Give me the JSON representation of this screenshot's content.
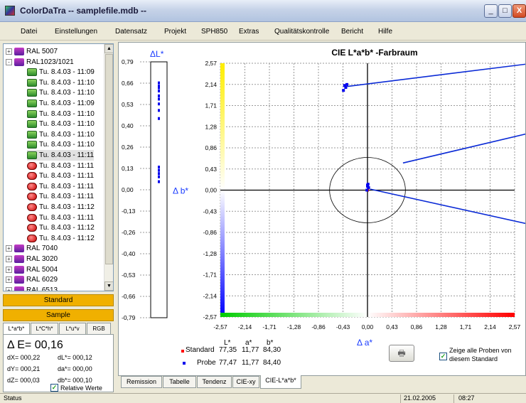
{
  "window": {
    "title": "ColorDaTra -- samplefile.mdb --",
    "minimize": "_",
    "maximize": "□",
    "close": "X"
  },
  "menu": [
    "Datei",
    "Einstellungen",
    "Datensatz",
    "Projekt",
    "SPH850",
    "Extras",
    "Qualitätskontrolle",
    "Bericht",
    "Hilfe"
  ],
  "tree": {
    "items": [
      {
        "label": "RAL 5007",
        "type": "folder",
        "exp": "+"
      },
      {
        "label": "RAL1023/1021",
        "type": "folder",
        "exp": "-"
      },
      {
        "label": "Tu. 8.4.03 - 11:09",
        "type": "green"
      },
      {
        "label": "Tu. 8.4.03 - 11:10",
        "type": "green"
      },
      {
        "label": "Tu. 8.4.03 - 11:10",
        "type": "green"
      },
      {
        "label": "Tu. 8.4.03 - 11:09",
        "type": "green"
      },
      {
        "label": "Tu. 8.4.03 - 11:10",
        "type": "green"
      },
      {
        "label": "Tu. 8.4.03 - 11:10",
        "type": "green"
      },
      {
        "label": "Tu. 8.4.03 - 11:10",
        "type": "green"
      },
      {
        "label": "Tu. 8.4.03 - 11:10",
        "type": "green"
      },
      {
        "label": "Tu. 8.4.03 - 11:11",
        "type": "green",
        "selected": true
      },
      {
        "label": "Tu. 8.4.03 - 11:11",
        "type": "red"
      },
      {
        "label": "Tu. 8.4.03 - 11:11",
        "type": "red"
      },
      {
        "label": "Tu. 8.4.03 - 11:11",
        "type": "red"
      },
      {
        "label": "Tu. 8.4.03 - 11:11",
        "type": "red"
      },
      {
        "label": "Tu. 8.4.03 - 11:12",
        "type": "red"
      },
      {
        "label": "Tu. 8.4.03 - 11:11",
        "type": "red"
      },
      {
        "label": "Tu. 8.4.03 - 11:12",
        "type": "red"
      },
      {
        "label": "Tu. 8.4.03 - 11:12",
        "type": "red"
      },
      {
        "label": "RAL 7040",
        "type": "folder",
        "exp": "+"
      },
      {
        "label": "RAL 3020",
        "type": "folder",
        "exp": "+"
      },
      {
        "label": "RAL 5004",
        "type": "folder",
        "exp": "+"
      },
      {
        "label": "RAL 6029",
        "type": "folder",
        "exp": "+"
      },
      {
        "label": "RAL 6513",
        "type": "folder",
        "exp": "+"
      }
    ]
  },
  "buttons": {
    "standard": "Standard",
    "sample": "Sample"
  },
  "left_tabs": [
    "L*a*b*",
    "L*C*h*",
    "L*u*v",
    "RGB"
  ],
  "delta": {
    "deltaE_label": "Δ E=",
    "deltaE_value": "00,16",
    "dX": "dX= 000,22",
    "dL": "dL*= 000,12",
    "dY": "dY= 000,21",
    "da": "da*= 000,00",
    "dZ": "dZ= 000,03",
    "db": "db*= 000,10",
    "relative_label": "Relative Werte",
    "relative_checked": "✓"
  },
  "chart_data": [
    {
      "type": "scatter",
      "title": "ΔL*",
      "ylabel": "ΔL*",
      "ylim": [
        -0.79,
        0.79
      ],
      "yticks": [
        "0,79",
        "0,66",
        "0,53",
        "0,40",
        "0,26",
        "0,13",
        "0,00",
        "-0,13",
        "-0,26",
        "-0,40",
        "-0,53",
        "-0,66",
        "-0,79"
      ],
      "series": [
        {
          "name": "Probe",
          "color": "#0000ee",
          "x": [
            0,
            0,
            0,
            0,
            0,
            0,
            0,
            0,
            0,
            0,
            0,
            0,
            0,
            0
          ],
          "y": [
            0.66,
            0.64,
            0.63,
            0.61,
            0.58,
            0.56,
            0.53,
            0.49,
            0.44,
            0.14,
            0.12,
            0.1,
            0.08,
            0.05
          ]
        }
      ]
    },
    {
      "type": "scatter",
      "title": "CIE L*a*b* -Farbraum",
      "xlabel": "Δ a*",
      "ylabel": "Δ b*",
      "xlim": [
        -2.57,
        2.57
      ],
      "ylim": [
        -2.57,
        2.57
      ],
      "xticks": [
        "-2,57",
        "-2,14",
        "-1,71",
        "-1,28",
        "-0,86",
        "-0,43",
        "0,00",
        "0,43",
        "0,86",
        "1,28",
        "1,71",
        "2,14",
        "2,57"
      ],
      "yticks": [
        "2,57",
        "2,14",
        "1,71",
        "1,28",
        "0,86",
        "0,43",
        "0,00",
        "-0,43",
        "-0,86",
        "-1,28",
        "-1,71",
        "-2,14",
        "-2,57"
      ],
      "grid": true,
      "tolerance_radius": 0.86,
      "series": [
        {
          "name": "Standard",
          "color": "#ff0000",
          "x": [
            0.0
          ],
          "y": [
            0.0
          ]
        },
        {
          "name": "Probe",
          "color": "#0000ee",
          "x": [
            -0.4,
            -0.38,
            -0.36,
            -0.42,
            0.0,
            0.02,
            -0.01,
            0.01,
            0.0
          ],
          "y": [
            2.12,
            2.08,
            2.14,
            2.02,
            0.1,
            0.05,
            0.0,
            0.12,
            0.08
          ]
        }
      ]
    }
  ],
  "legend_table": {
    "headers": [
      "L*",
      "a*",
      "b*"
    ],
    "rows": [
      {
        "label": "Standard",
        "L": "77,35",
        "a": "11,77",
        "b": "84,30",
        "color": "#ff0000"
      },
      {
        "label": "Probe",
        "L": "77,47",
        "a": "11,77",
        "b": "84,40",
        "color": "#0000ee"
      }
    ]
  },
  "show_all": {
    "label_line1": "Zeige alle Proben von",
    "label_line2": "diesem Standard",
    "checked": "✓"
  },
  "bottom_tabs": [
    "Remission",
    "Tabelle",
    "Tendenz",
    "CIE-xy",
    "CIE-L*a*b*"
  ],
  "status": {
    "text": "Status",
    "date": "21.02.2005",
    "time": "08:27"
  }
}
